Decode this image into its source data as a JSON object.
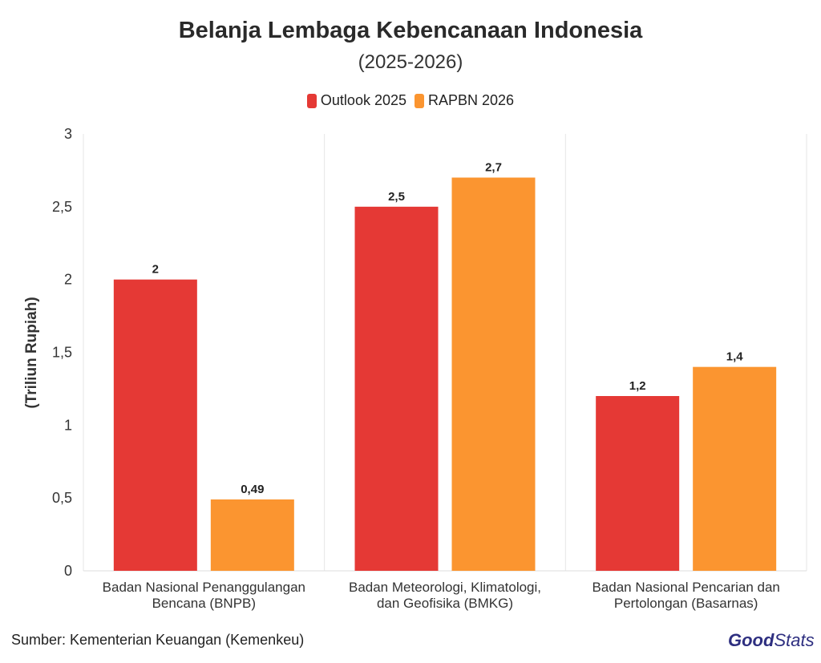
{
  "chart_data": {
    "type": "bar",
    "title": "Belanja Lembaga Kebencanaan Indonesia",
    "subtitle": "(2025-2026)",
    "ylabel": "(Triliun Rupiah)",
    "ylim": [
      0,
      3
    ],
    "yticks": [
      0,
      0.5,
      1,
      1.5,
      2,
      2.5,
      3
    ],
    "ytick_labels": [
      "0",
      "0,5",
      "1",
      "1,5",
      "2",
      "2,5",
      "3"
    ],
    "categories": [
      [
        "Badan Nasional Penanggulangan",
        "Bencana (BNPB)"
      ],
      [
        "Badan Meteorologi, Klimatologi,",
        "dan Geofisika (BMKG)"
      ],
      [
        "Badan Nasional Pencarian dan",
        "Pertolongan (Basarnas)"
      ]
    ],
    "series": [
      {
        "name": "Outlook 2025",
        "color": "#e53935",
        "values": [
          2,
          2.5,
          1.2
        ],
        "labels": [
          "2",
          "2,5",
          "1,2"
        ]
      },
      {
        "name": "RAPBN 2026",
        "color": "#fb9530",
        "values": [
          0.49,
          2.7,
          1.4
        ],
        "labels": [
          "0,49",
          "2,7",
          "1,4"
        ]
      }
    ],
    "legend_position": "top-center",
    "grid": "vertical-separators"
  },
  "footer": {
    "source": "Sumber: Kementerian Keuangan (Kemenkeu)",
    "logo_good": "Good",
    "logo_stats": "Stats"
  }
}
